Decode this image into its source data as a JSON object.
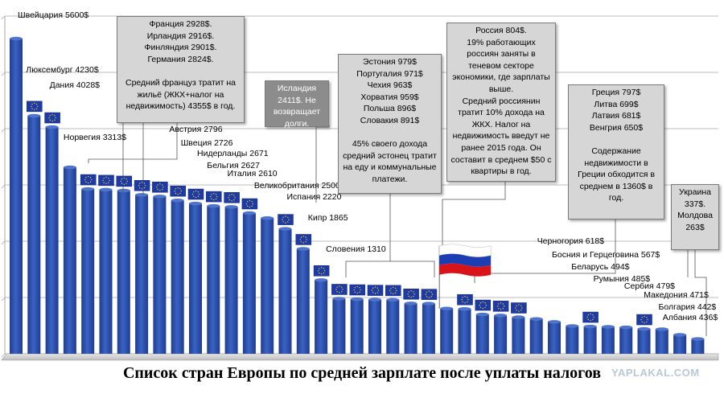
{
  "chart_data": {
    "type": "bar",
    "caption": "Список стран Европы по средней зарплате после уплаты налогов",
    "unit": "$",
    "ylim": [
      0,
      6000
    ],
    "grid": true,
    "series": [
      {
        "label": "Швейцария 5600$",
        "value": 5600,
        "eu": false
      },
      {
        "label": "Люксембург 4230$",
        "value": 4230,
        "eu": true
      },
      {
        "label": "Дания 4028$",
        "value": 4028,
        "eu": true
      },
      {
        "label": "Норвегия 3313$",
        "value": 3313,
        "eu": false
      },
      {
        "label": "Франция",
        "value": 2928,
        "eu": true
      },
      {
        "label": "Ирландия",
        "value": 2916,
        "eu": true
      },
      {
        "label": "Финляндия",
        "value": 2901,
        "eu": true
      },
      {
        "label": "Германия",
        "value": 2824,
        "eu": true
      },
      {
        "label": "Австрия 2796",
        "value": 2796,
        "eu": true
      },
      {
        "label": "Швеция 2726",
        "value": 2726,
        "eu": true
      },
      {
        "label": "Нидерланды 2671",
        "value": 2671,
        "eu": true
      },
      {
        "label": "Бельгия 2627",
        "value": 2627,
        "eu": true
      },
      {
        "label": "Италия 2610",
        "value": 2610,
        "eu": true
      },
      {
        "label": "Великобритания 2500",
        "value": 2500,
        "eu": true
      },
      {
        "label": "Исландия",
        "value": 2411,
        "eu": false
      },
      {
        "label": "Испания 2220",
        "value": 2220,
        "eu": true
      },
      {
        "label": "Кипр 1865",
        "value": 1865,
        "eu": true
      },
      {
        "label": "Словения 1310",
        "value": 1310,
        "eu": true
      },
      {
        "label": "Эстония",
        "value": 979,
        "eu": true
      },
      {
        "label": "Португалия",
        "value": 971,
        "eu": true
      },
      {
        "label": "Чехия",
        "value": 963,
        "eu": true
      },
      {
        "label": "Хорватия",
        "value": 959,
        "eu": true
      },
      {
        "label": "Польша",
        "value": 896,
        "eu": true
      },
      {
        "label": "Словакия",
        "value": 891,
        "eu": true
      },
      {
        "label": "Россия",
        "value": 804,
        "eu": false,
        "ru": true
      },
      {
        "label": "Греция",
        "value": 797,
        "eu": true
      },
      {
        "label": "Литва",
        "value": 699,
        "eu": true
      },
      {
        "label": "Латвия",
        "value": 681,
        "eu": true
      },
      {
        "label": "Венгрия",
        "value": 650,
        "eu": true
      },
      {
        "label": "Черногория 618$",
        "value": 618,
        "eu": false
      },
      {
        "label": "Босния и Герцеговина 567$",
        "value": 567,
        "eu": false
      },
      {
        "label": "Беларусь 494$",
        "value": 494,
        "eu": false
      },
      {
        "label": "Румыния 485$",
        "value": 485,
        "eu": true
      },
      {
        "label": "Сербия 479$",
        "value": 479,
        "eu": false
      },
      {
        "label": "Македония 471$",
        "value": 471,
        "eu": false
      },
      {
        "label": "Болгария 442$",
        "value": 442,
        "eu": true
      },
      {
        "label": "Албания 436$",
        "value": 436,
        "eu": false
      },
      {
        "label": "Украина",
        "value": 337,
        "eu": false
      },
      {
        "label": "Молдова",
        "value": 263,
        "eu": false
      }
    ],
    "annotations": [
      {
        "text": "Франция 2928$.\nИрландия 2916$.\nФинляндия 2901$.\nГермания 2824$.\n\nСредний француз тратит на жильё (ЖКХ+налог на недвижимость) 4355$ в год."
      },
      {
        "text": "Исландия 2411$. Не возвращает долги."
      },
      {
        "text": "Эстония 979$\nПортугалия 971$\nЧехия 963$\nХорватия 959$\nПольша 896$\nСловакия 891$\n\n45% своего дохода средний эстонец тратит на еду и коммунальные платежи."
      },
      {
        "text": "Россия 804$.\n19% работающих россиян заняты в теневом секторе экономики, где зарплаты выше.\nСредний россиянин тратит 10% дохода на ЖКХ. Налог на недвижимость введут не ранее 2015 года. Он составит в среднем $50 с квартиры в год."
      },
      {
        "text": "Греция 797$\nЛитва 699$\nЛатвия 681$\nВенгрия 650$\n\nСодержание недвижимости в Греции обходится в среднем в 1360$ в год."
      },
      {
        "text": "Украина 337$. Молдова 263$"
      }
    ]
  },
  "watermark": "YAPLAKAL.COM",
  "colors": {
    "bar": "#1f3c8f",
    "bar_light": "#3a63c4",
    "floor": "#c8c8c8",
    "eu_flag": "#1c3aa8",
    "eu_star": "#ffd400",
    "note_bg": "#d6d6d6",
    "note_dark_bg": "#8c8c8c"
  }
}
